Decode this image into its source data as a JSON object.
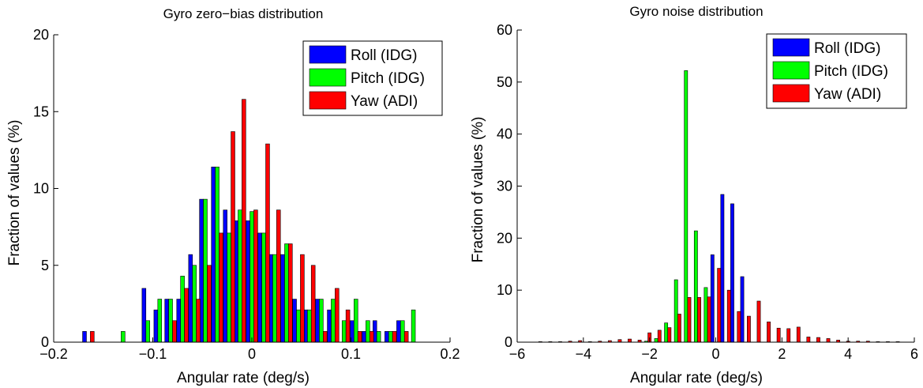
{
  "chart_data": [
    {
      "type": "bar",
      "title": "Gyro zero−bias distribution",
      "xlabel": "Angular rate (deg/s)",
      "ylabel": "Fraction of values (%)",
      "xlim": [
        -0.2,
        0.2
      ],
      "ylim": [
        0,
        20
      ],
      "xticks": [
        "−0.2",
        "−0.1",
        "0",
        "0.1",
        "0.2"
      ],
      "yticks": [
        "0",
        "5",
        "10",
        "15",
        "20"
      ],
      "legend_position": "top-right",
      "bin_width": 0.0117,
      "x": [
        -0.165,
        -0.13,
        -0.105,
        -0.093,
        -0.082,
        -0.07,
        -0.058,
        -0.047,
        -0.035,
        -0.023,
        -0.012,
        0.0,
        0.012,
        0.023,
        0.035,
        0.047,
        0.058,
        0.07,
        0.082,
        0.093,
        0.105,
        0.117,
        0.128,
        0.14,
        0.152,
        0.163
      ],
      "series": [
        {
          "name": "Roll (IDG)",
          "color": "#0000ff",
          "values": [
            0.7,
            0,
            3.5,
            2.1,
            2.8,
            2.8,
            5.7,
            9.3,
            11.4,
            8.6,
            7.9,
            7.9,
            7.1,
            5.7,
            5.7,
            2.8,
            2.1,
            2.8,
            2.1,
            0,
            1.4,
            0.7,
            1.4,
            0.7,
            1.4,
            0
          ]
        },
        {
          "name": "Pitch (IDG)",
          "color": "#00ff00",
          "values": [
            0,
            0.7,
            1.4,
            2.8,
            2.8,
            4.3,
            5.0,
            9.3,
            11.4,
            7.1,
            8.6,
            8.5,
            7.1,
            5.7,
            6.4,
            2.1,
            2.1,
            2.8,
            2.8,
            1.4,
            2.8,
            1.4,
            0.7,
            0.7,
            1.4,
            2.1
          ]
        },
        {
          "name": "Yaw (ADI)",
          "color": "#ff0000",
          "values": [
            0.7,
            0,
            0,
            0,
            1.4,
            3.5,
            2.8,
            5.0,
            7.1,
            13.7,
            15.8,
            8.6,
            12.9,
            8.6,
            6.4,
            5.7,
            5.0,
            0.7,
            3.5,
            2.1,
            0.7,
            0.7,
            0,
            0.7,
            0.7,
            0
          ]
        }
      ]
    },
    {
      "type": "bar",
      "title": "Gyro noise distribution",
      "xlabel": "Angular rate (deg/s)",
      "ylabel": "Fraction of values (%)",
      "xlim": [
        -6,
        6
      ],
      "ylim": [
        0,
        60
      ],
      "xticks": [
        "−6",
        "−4",
        "−2",
        "0",
        "2",
        "4",
        "6"
      ],
      "yticks": [
        "0",
        "10",
        "20",
        "30",
        "40",
        "50",
        "60"
      ],
      "legend_position": "top-right",
      "bin_width": 0.3,
      "x": [
        -5.4,
        -5.1,
        -4.8,
        -4.5,
        -4.2,
        -3.9,
        -3.6,
        -3.3,
        -3.0,
        -2.7,
        -2.4,
        -2.1,
        -1.8,
        -1.5,
        -1.2,
        -0.9,
        -0.6,
        -0.3,
        0.0,
        0.3,
        0.6,
        0.9,
        1.2,
        1.5,
        1.8,
        2.1,
        2.4,
        2.7,
        3.0,
        3.3,
        3.6,
        3.9,
        4.2,
        4.5,
        4.8,
        5.1,
        5.4
      ],
      "series": [
        {
          "name": "Roll (IDG)",
          "color": "#0000ff",
          "values": [
            0,
            0,
            0,
            0,
            0,
            0,
            0,
            0,
            0,
            0,
            0,
            0,
            0,
            0,
            0,
            0,
            0,
            0,
            16.8,
            28.4,
            26.6,
            12.6,
            0,
            0,
            0,
            0,
            0,
            0,
            0,
            0,
            0,
            0,
            0,
            0,
            0,
            0,
            0
          ]
        },
        {
          "name": "Pitch (IDG)",
          "color": "#00ff00",
          "values": [
            0,
            0,
            0,
            0,
            0,
            0,
            0,
            0,
            0,
            0,
            0,
            0.2,
            0.7,
            3.7,
            12.0,
            52.2,
            21.4,
            10.5,
            0,
            0,
            0,
            0,
            0,
            0,
            0,
            0,
            0,
            0,
            0,
            0,
            0,
            0,
            0,
            0,
            0,
            0,
            0
          ]
        },
        {
          "name": "Yaw (ADI)",
          "color": "#ff0000",
          "values": [
            0.1,
            0.1,
            0.1,
            0.2,
            0.3,
            0.1,
            0.2,
            0.3,
            0.5,
            0.6,
            0.4,
            1.8,
            2.3,
            2.8,
            5.4,
            8.6,
            8.6,
            8.7,
            14.2,
            10.0,
            5.9,
            5.0,
            7.9,
            3.9,
            2.7,
            2.6,
            2.9,
            1.0,
            0.9,
            0.7,
            0.4,
            0.2,
            0.2,
            0.2,
            0.1,
            0.1,
            0.1
          ]
        }
      ]
    }
  ]
}
